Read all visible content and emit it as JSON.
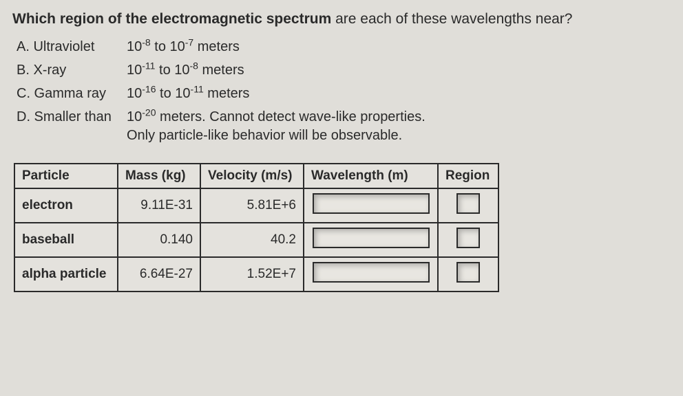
{
  "question": {
    "lead_bold": "Which region of the electromagnetic spectrum",
    "lead_rest": " are each of these wavelengths near?"
  },
  "options": [
    {
      "label": "A. Ultraviolet",
      "base": "10",
      "e1": "-8",
      "mid": " to 10",
      "e2": "-7",
      "tail": " meters",
      "multiline": false
    },
    {
      "label": "B. X-ray",
      "base": "10",
      "e1": "-11",
      "mid": " to 10",
      "e2": "-8",
      "tail": " meters",
      "multiline": false
    },
    {
      "label": "C. Gamma ray",
      "base": "10",
      "e1": "-16",
      "mid": " to 10",
      "e2": "-11",
      "tail": " meters",
      "multiline": false
    },
    {
      "label": "D. Smaller than",
      "base": "10",
      "e1": "-20",
      "mid": " meters. Cannot detect wave-like properties.",
      "e2": "",
      "tail": "",
      "line2": "Only particle-like behavior will be observable.",
      "multiline": true
    }
  ],
  "table": {
    "headers": [
      "Particle",
      "Mass (kg)",
      "Velocity (m/s)",
      "Wavelength (m)",
      "Region"
    ],
    "rows": [
      {
        "particle": "electron",
        "mass": "9.11E-31",
        "vel": "5.81E+6"
      },
      {
        "particle": "baseball",
        "mass": "0.140",
        "vel": "40.2"
      },
      {
        "particle": "alpha particle",
        "mass": "6.64E-27",
        "vel": "1.52E+7"
      }
    ]
  }
}
